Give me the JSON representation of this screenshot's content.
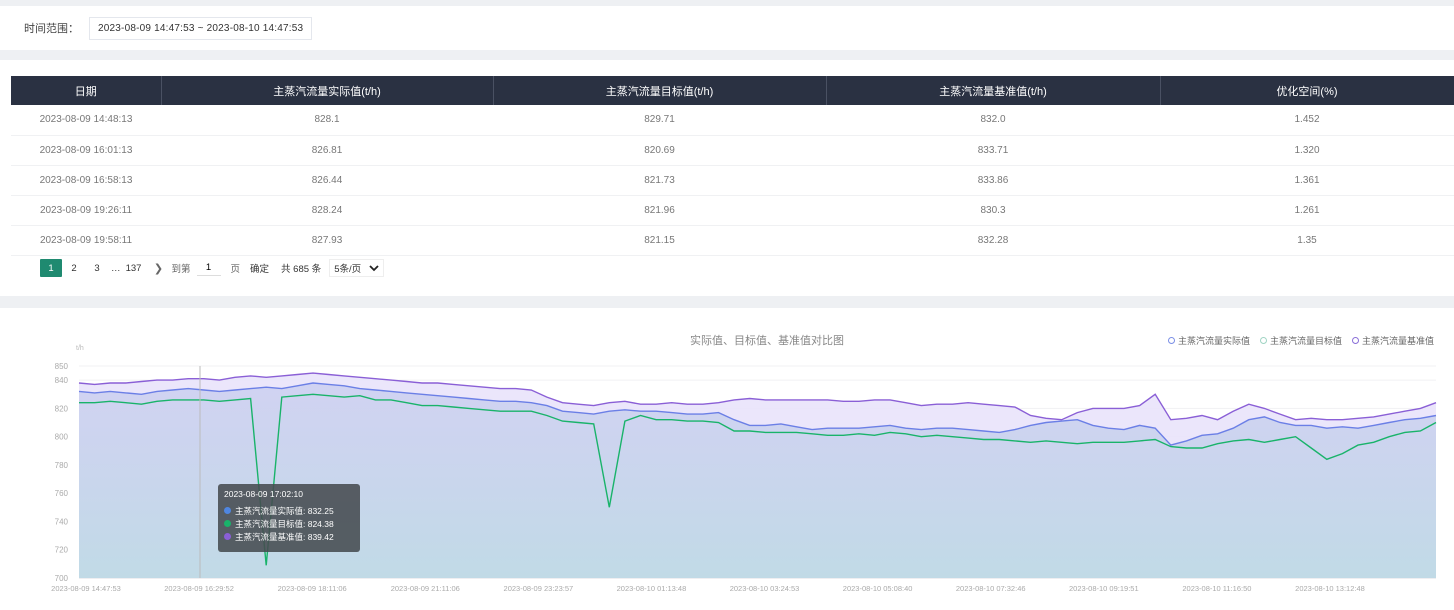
{
  "filter": {
    "label": "时间范围：",
    "range": "2023-08-09 14:47:53 ~ 2023-08-10 14:47:53"
  },
  "table": {
    "headers": [
      "日期",
      "主蒸汽流量实际值(t/h)",
      "主蒸汽流量目标值(t/h)",
      "主蒸汽流量基准值(t/h)",
      "优化空间(%)"
    ],
    "rows": [
      [
        "2023-08-09 14:48:13",
        "828.1",
        "829.71",
        "832.0",
        "1.452"
      ],
      [
        "2023-08-09 16:01:13",
        "826.81",
        "820.69",
        "833.71",
        "1.320"
      ],
      [
        "2023-08-09 16:58:13",
        "826.44",
        "821.73",
        "833.86",
        "1.361"
      ],
      [
        "2023-08-09 19:26:11",
        "828.24",
        "821.96",
        "830.3",
        "1.261"
      ],
      [
        "2023-08-09 19:58:11",
        "827.93",
        "821.15",
        "832.28",
        "1.35"
      ]
    ]
  },
  "pagination": {
    "pages": [
      "1",
      "2",
      "3",
      "…",
      "137"
    ],
    "active": "1",
    "next_icon": "chevron-right-icon",
    "goto_label": "到第",
    "goto_value": "1",
    "page_unit": "页",
    "confirm": "确定",
    "total": "共 685 条",
    "page_size": "5条/页"
  },
  "chart": {
    "title": "实际值、目标值、基准值对比图",
    "legend": [
      {
        "label": "主蒸汽流量实际值",
        "color": "#7b8fe6"
      },
      {
        "label": "主蒸汽流量目标值",
        "color": "#a0d4c4"
      },
      {
        "label": "主蒸汽流量基准值",
        "color": "#8a6fd8"
      }
    ],
    "unit": "t/h",
    "y_ticks": [
      "850",
      "840",
      "820",
      "800",
      "780",
      "760",
      "740",
      "720",
      "700"
    ],
    "x_ticks": [
      "2023-08-09 14:47:53",
      "2023-08-09 16:29:52",
      "2023-08-09 18:11:06",
      "2023-08-09 21:11:06",
      "2023-08-09 23:23:57",
      "2023-08-10 01:13:48",
      "2023-08-10 03:24:53",
      "2023-08-10 05:08:40",
      "2023-08-10 07:32:46",
      "2023-08-10 09:19:51",
      "2023-08-10 11:16:50",
      "2023-08-10 13:12:48"
    ],
    "tooltip": {
      "time": "2023-08-09 17:02:10",
      "rows": [
        {
          "label": "主蒸汽流量实际值: 832.25",
          "color": "#4f86e0"
        },
        {
          "label": "主蒸汽流量目标值: 824.38",
          "color": "#19b36a"
        },
        {
          "label": "主蒸汽流量基准值: 839.42",
          "color": "#8a5fd6"
        }
      ]
    }
  },
  "chart_data": {
    "type": "line",
    "title": "实际值、目标值、基准值对比图",
    "ylabel": "t/h",
    "ylim": [
      700,
      850
    ],
    "x_range": [
      "2023-08-09 14:47:53",
      "2023-08-10 14:47:53"
    ],
    "series": [
      {
        "name": "主蒸汽流量实际值",
        "color": "#6b7fe6",
        "values": [
          832,
          831,
          832,
          831,
          830,
          832,
          833,
          834,
          833,
          832,
          833,
          834,
          835,
          834,
          836,
          838,
          837,
          836,
          834,
          833,
          832,
          831,
          830,
          829,
          828,
          827,
          826,
          825,
          825,
          824,
          822,
          818,
          817,
          816,
          818,
          819,
          818,
          818,
          817,
          816,
          816,
          817,
          812,
          808,
          808,
          809,
          807,
          805,
          806,
          806,
          806,
          807,
          808,
          806,
          805,
          806,
          806,
          805,
          804,
          803,
          805,
          808,
          810,
          811,
          812,
          808,
          806,
          805,
          808,
          806,
          794,
          797,
          801,
          802,
          806,
          812,
          814,
          810,
          808,
          808,
          806,
          807,
          806,
          808,
          810,
          812,
          813,
          815
        ]
      },
      {
        "name": "主蒸汽流量目标值",
        "color": "#19b36a",
        "values": [
          824,
          824,
          825,
          824,
          823,
          825,
          826,
          826,
          826,
          825,
          826,
          827,
          709,
          828,
          829,
          830,
          829,
          828,
          829,
          826,
          826,
          824,
          822,
          822,
          821,
          820,
          819,
          818,
          818,
          818,
          815,
          811,
          810,
          809,
          750,
          811,
          815,
          812,
          812,
          811,
          811,
          810,
          804,
          804,
          803,
          803,
          803,
          802,
          801,
          801,
          802,
          801,
          803,
          802,
          800,
          801,
          800,
          799,
          798,
          798,
          797,
          796,
          797,
          796,
          795,
          796,
          796,
          796,
          797,
          798,
          793,
          792,
          792,
          795,
          797,
          798,
          796,
          798,
          800,
          792,
          784,
          788,
          794,
          796,
          800,
          803,
          804,
          810
        ]
      },
      {
        "name": "主蒸汽流量基准值",
        "color": "#8a5fd6",
        "values": [
          838,
          837,
          838,
          838,
          839,
          840,
          840,
          841,
          841,
          840,
          842,
          843,
          842,
          843,
          844,
          845,
          844,
          843,
          842,
          841,
          840,
          839,
          838,
          838,
          837,
          836,
          835,
          834,
          834,
          833,
          828,
          824,
          823,
          822,
          824,
          825,
          823,
          823,
          824,
          823,
          823,
          824,
          826,
          827,
          826,
          826,
          826,
          826,
          826,
          825,
          825,
          826,
          826,
          824,
          822,
          823,
          823,
          824,
          823,
          822,
          821,
          815,
          813,
          812,
          817,
          820,
          820,
          820,
          822,
          830,
          812,
          813,
          815,
          812,
          818,
          823,
          820,
          816,
          812,
          813,
          812,
          812,
          813,
          814,
          816,
          818,
          820,
          824
        ]
      }
    ]
  }
}
